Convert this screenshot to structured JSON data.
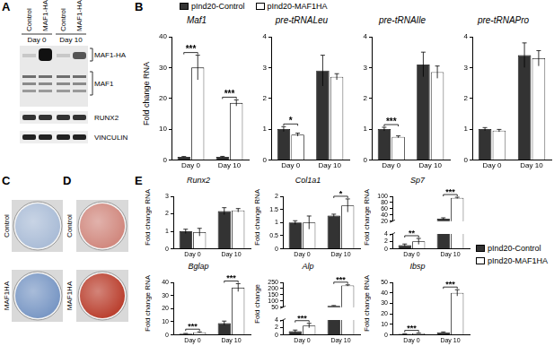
{
  "panel_labels": [
    "A",
    "B",
    "C",
    "D",
    "E"
  ],
  "blot": {
    "lanes": [
      "Control",
      "MAF1-HA",
      "Control",
      "MAF1-HA"
    ],
    "groups": [
      "Day 0",
      "Day 10"
    ],
    "bands": [
      "MAF1-HA",
      "MAF1",
      "RUNX2",
      "VINCULIN"
    ]
  },
  "plates": [
    {
      "rows": [
        "Control",
        "MAF1HA"
      ],
      "color": "#6f8fc0"
    },
    {
      "rows": [
        "Control",
        "MAF1HA"
      ],
      "color": "#b5321f"
    }
  ],
  "chart_data": [
    {
      "type": "bar",
      "title": "Maf1",
      "ylabel": "Fold change RNA",
      "categories": [
        "Day 0",
        "Day 10"
      ],
      "legend": "top",
      "grid": false,
      "series": [
        {
          "name": "pInd20-Control",
          "color": "#333333",
          "values": [
            1,
            1
          ],
          "errors": [
            0.1,
            0.15
          ]
        },
        {
          "name": "pInd20-MAF1HA",
          "color": "#ffffff",
          "values": [
            30,
            18.5
          ],
          "errors": [
            4,
            1
          ]
        }
      ],
      "ylim": [
        0,
        40
      ],
      "yticks": [
        0,
        10,
        20,
        30,
        40
      ],
      "annotations": [
        {
          "category": "Day 0",
          "text": "***"
        },
        {
          "category": "Day 10",
          "text": "***"
        }
      ]
    },
    {
      "type": "bar",
      "title": "pre-tRNALeu",
      "categories": [
        "Day 0",
        "Day 10"
      ],
      "grid": false,
      "series": [
        {
          "name": "pInd20-Control",
          "color": "#333333",
          "values": [
            1,
            2.9
          ],
          "errors": [
            0.08,
            0.5
          ]
        },
        {
          "name": "pInd20-MAF1HA",
          "color": "#ffffff",
          "values": [
            0.82,
            2.7
          ],
          "errors": [
            0.05,
            0.1
          ]
        }
      ],
      "ylim": [
        0,
        4
      ],
      "yticks": [
        0,
        1,
        2,
        3,
        4
      ],
      "annotations": [
        {
          "category": "Day 0",
          "text": "*"
        }
      ]
    },
    {
      "type": "bar",
      "title": "pre-tRNAIle",
      "categories": [
        "Day 0",
        "Day 10"
      ],
      "grid": false,
      "series": [
        {
          "name": "pInd20-Control",
          "color": "#333333",
          "values": [
            1,
            3.1
          ],
          "errors": [
            0.06,
            0.4
          ]
        },
        {
          "name": "pInd20-MAF1HA",
          "color": "#ffffff",
          "values": [
            0.75,
            2.85
          ],
          "errors": [
            0.03,
            0.2
          ]
        }
      ],
      "ylim": [
        0,
        4
      ],
      "yticks": [
        0,
        1,
        2,
        3,
        4
      ],
      "annotations": [
        {
          "category": "Day 0",
          "text": "***"
        }
      ]
    },
    {
      "type": "bar",
      "title": "pre-tRNAPro",
      "categories": [
        "Day 0",
        "Day 10"
      ],
      "grid": false,
      "series": [
        {
          "name": "pInd20-Control",
          "color": "#333333",
          "values": [
            1,
            3.4
          ],
          "errors": [
            0.05,
            0.4
          ]
        },
        {
          "name": "pInd20-MAF1HA",
          "color": "#ffffff",
          "values": [
            0.95,
            3.3
          ],
          "errors": [
            0.04,
            0.25
          ]
        }
      ],
      "ylim": [
        0,
        4
      ],
      "yticks": [
        0,
        1,
        2,
        3,
        4
      ]
    },
    {
      "type": "bar",
      "title": "Runx2",
      "ylabel": "Fold change RNA",
      "categories": [
        "Day 0",
        "Day 10"
      ],
      "grid": false,
      "series": [
        {
          "name": "pInd20-Control",
          "color": "#333333",
          "values": [
            1,
            2.15
          ],
          "errors": [
            0.12,
            0.2
          ]
        },
        {
          "name": "pInd20-MAF1HA",
          "color": "#ffffff",
          "values": [
            0.95,
            2.2
          ],
          "errors": [
            0.22,
            0.1
          ]
        }
      ],
      "ylim": [
        0,
        3
      ],
      "yticks": [
        0,
        1,
        2,
        3
      ]
    },
    {
      "type": "bar",
      "title": "Col1a1",
      "ylabel": "Fold change RNA",
      "categories": [
        "Day 0",
        "Day 10"
      ],
      "grid": false,
      "series": [
        {
          "name": "pInd20-Control",
          "color": "#333333",
          "values": [
            1,
            1.27
          ],
          "errors": [
            0.07,
            0.05
          ]
        },
        {
          "name": "pInd20-MAF1HA",
          "color": "#ffffff",
          "values": [
            1,
            1.65
          ],
          "errors": [
            0.25,
            0.25
          ]
        }
      ],
      "ylim": [
        0,
        2
      ],
      "yticks": [
        0,
        0.5,
        1,
        1.5,
        2
      ],
      "annotations": [
        {
          "category": "Day 10",
          "text": "*"
        }
      ]
    },
    {
      "type": "bar",
      "title": "Sp7",
      "ylabel": "Fold change RNA",
      "categories": [
        "Day 0",
        "Day 10"
      ],
      "grid": false,
      "legend": "right",
      "series": [
        {
          "name": "pInd20-Control",
          "color": "#333333",
          "values": [
            1,
            28
          ],
          "errors": [
            0.3,
            3
          ]
        },
        {
          "name": "pInd20-MAF1HA",
          "color": "#ffffff",
          "values": [
            2,
            95
          ],
          "errors": [
            0.8,
            2
          ]
        }
      ],
      "ylim": [
        0,
        100
      ],
      "yticks": [
        0,
        2,
        4,
        20,
        40,
        60,
        80,
        100
      ],
      "ybreak": [
        4,
        20
      ],
      "annotations": [
        {
          "category": "Day 0",
          "text": "**"
        },
        {
          "category": "Day 10",
          "text": "***"
        }
      ]
    },
    {
      "type": "bar",
      "title": "Bglap",
      "ylabel": "Fold change RNA",
      "categories": [
        "Day 0",
        "Day 10"
      ],
      "grid": false,
      "series": [
        {
          "name": "pInd20-Control",
          "color": "#333333",
          "values": [
            1,
            9
          ],
          "errors": [
            0.1,
            1.5
          ]
        },
        {
          "name": "pInd20-MAF1HA",
          "color": "#ffffff",
          "values": [
            2,
            36
          ],
          "errors": [
            0.3,
            3
          ]
        }
      ],
      "ylim": [
        0,
        40
      ],
      "yticks": [
        0,
        10,
        20,
        30,
        40
      ],
      "annotations": [
        {
          "category": "Day 0",
          "text": "***"
        },
        {
          "category": "Day 10",
          "text": "***"
        }
      ]
    },
    {
      "type": "bar",
      "title": "Alp",
      "ylabel": "Fold change",
      "categories": [
        "Day 0",
        "Day 10"
      ],
      "grid": false,
      "series": [
        {
          "name": "pInd20-Control",
          "color": "#333333",
          "values": [
            1,
            62
          ],
          "errors": [
            0.3,
            2
          ]
        },
        {
          "name": "pInd20-MAF1HA",
          "color": "#ffffff",
          "values": [
            2.5,
            225
          ],
          "errors": [
            0.6,
            5
          ]
        }
      ],
      "ylim": [
        0,
        250
      ],
      "yticks": [
        0,
        2,
        4,
        50,
        100,
        150,
        200,
        250
      ],
      "ybreak": [
        4,
        50
      ],
      "annotations": [
        {
          "category": "Day 0",
          "text": "***"
        },
        {
          "category": "Day 10",
          "text": "***"
        }
      ]
    },
    {
      "type": "bar",
      "title": "Ibsp",
      "ylabel": "Fold change RNA",
      "categories": [
        "Day 0",
        "Day 10"
      ],
      "grid": false,
      "series": [
        {
          "name": "pInd20-Control",
          "color": "#333333",
          "values": [
            1,
            2.5
          ],
          "errors": [
            0.1,
            0.3
          ]
        },
        {
          "name": "pInd20-MAF1HA",
          "color": "#ffffff",
          "values": [
            1.5,
            40
          ],
          "errors": [
            0.2,
            3
          ]
        }
      ],
      "ylim": [
        0,
        50
      ],
      "yticks": [
        0,
        10,
        20,
        30,
        40,
        50
      ],
      "annotations": [
        {
          "category": "Day 0",
          "text": "***"
        },
        {
          "category": "Day 10",
          "text": "***"
        }
      ]
    }
  ]
}
